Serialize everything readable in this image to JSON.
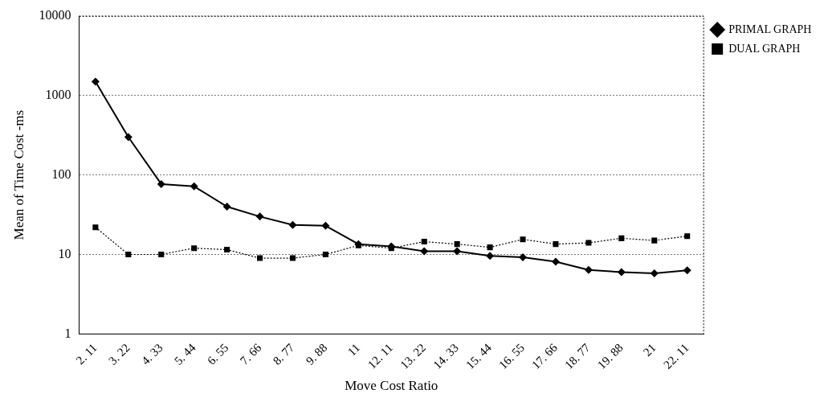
{
  "chart_data": {
    "type": "line",
    "xlabel": "Move Cost Ratio",
    "ylabel": "Mean of Time Cost -ms",
    "categories": [
      "2. 11",
      "3. 22",
      "4. 33",
      "5. 44",
      "6. 55",
      "7. 66",
      "8. 77",
      "9. 88",
      "11",
      "12. 11",
      "13. 22",
      "14. 33",
      "15. 44",
      "16. 55",
      "17. 66",
      "18. 77",
      "19. 88",
      "21",
      "22. 11"
    ],
    "series": [
      {
        "name": "PRIMAL GRAPH",
        "color": "#000000",
        "marker": "diamond",
        "line_style": "solid",
        "values": [
          1500,
          300,
          77,
          72,
          40,
          30,
          23.5,
          23,
          13.5,
          12.6,
          11,
          11,
          9.6,
          9.2,
          8.1,
          6.4,
          6,
          5.8,
          6.3
        ]
      },
      {
        "name": "DUAL GRAPH",
        "color": "#000000",
        "marker": "square",
        "line_style": "dotted",
        "values": [
          22,
          10,
          10,
          12,
          11.5,
          9,
          9,
          10,
          13,
          12,
          14.5,
          13.5,
          12.3,
          15.5,
          13.5,
          14,
          16,
          15,
          17
        ]
      }
    ],
    "log": "y",
    "ylim": [
      1,
      10000
    ],
    "yticks": [
      1,
      10,
      100,
      1000,
      10000
    ],
    "grid": "y",
    "legend": "top right"
  }
}
